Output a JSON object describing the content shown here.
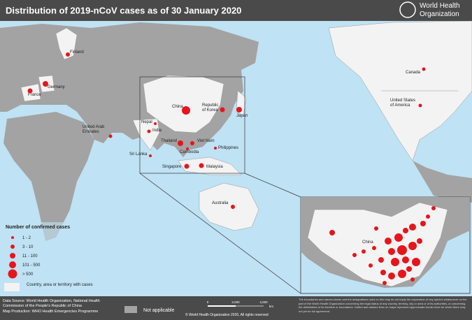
{
  "header": {
    "title": "Distribution of 2019-nCoV cases as of 30 January 2020",
    "logo": [
      "World Health",
      "Organization"
    ]
  },
  "map": {
    "labels": [
      [
        "Finland"
      ],
      [
        "Germany"
      ],
      [
        "France"
      ],
      [
        "United Arab",
        "Emirates"
      ],
      [
        "Nepal"
      ],
      [
        "India"
      ],
      [
        "Sri Lanka"
      ],
      [
        "Thailand"
      ],
      [
        "Cambodia"
      ],
      [
        "Viet Nam"
      ],
      [
        "Singapore"
      ],
      [
        "Malaysia"
      ],
      [
        "Philippines"
      ],
      [
        "China"
      ],
      [
        "Republic",
        "of Korea"
      ],
      [
        "Japan"
      ],
      [
        "Australia"
      ],
      [
        "Canada"
      ],
      [
        "United States",
        "of America"
      ]
    ],
    "inset_label": "China"
  },
  "legend": {
    "title": "Number of confirmed cases",
    "items": [
      "1 - 2",
      "3 - 10",
      "11 - 100",
      "101 - 500",
      "> 500"
    ],
    "cases_area": "Country, area or territory with cases",
    "not_applicable": "Not applicable"
  },
  "footer": {
    "data_source": "Data Source: World Health Organization, National Health Commission of the People's Republic of China",
    "map_production": "Map Production: WHO Health Emergencies Programme",
    "disclaimer": "The boundaries and names shown and the designations used on this map do not imply the expression of any opinion whatsoever on the part of the World Health Organization concerning the legal status of any country, territory, city or area or of its authorities, or concerning the delimitation of its frontiers or boundaries. Dotted and dashed lines on maps represent approximate border lines for which there may not yet be full agreement.",
    "scale": [
      "0",
      "2,000",
      "4,000"
    ],
    "scale_unit": "km",
    "copyright": "© World Health Organization 2020, All rights reserved"
  }
}
